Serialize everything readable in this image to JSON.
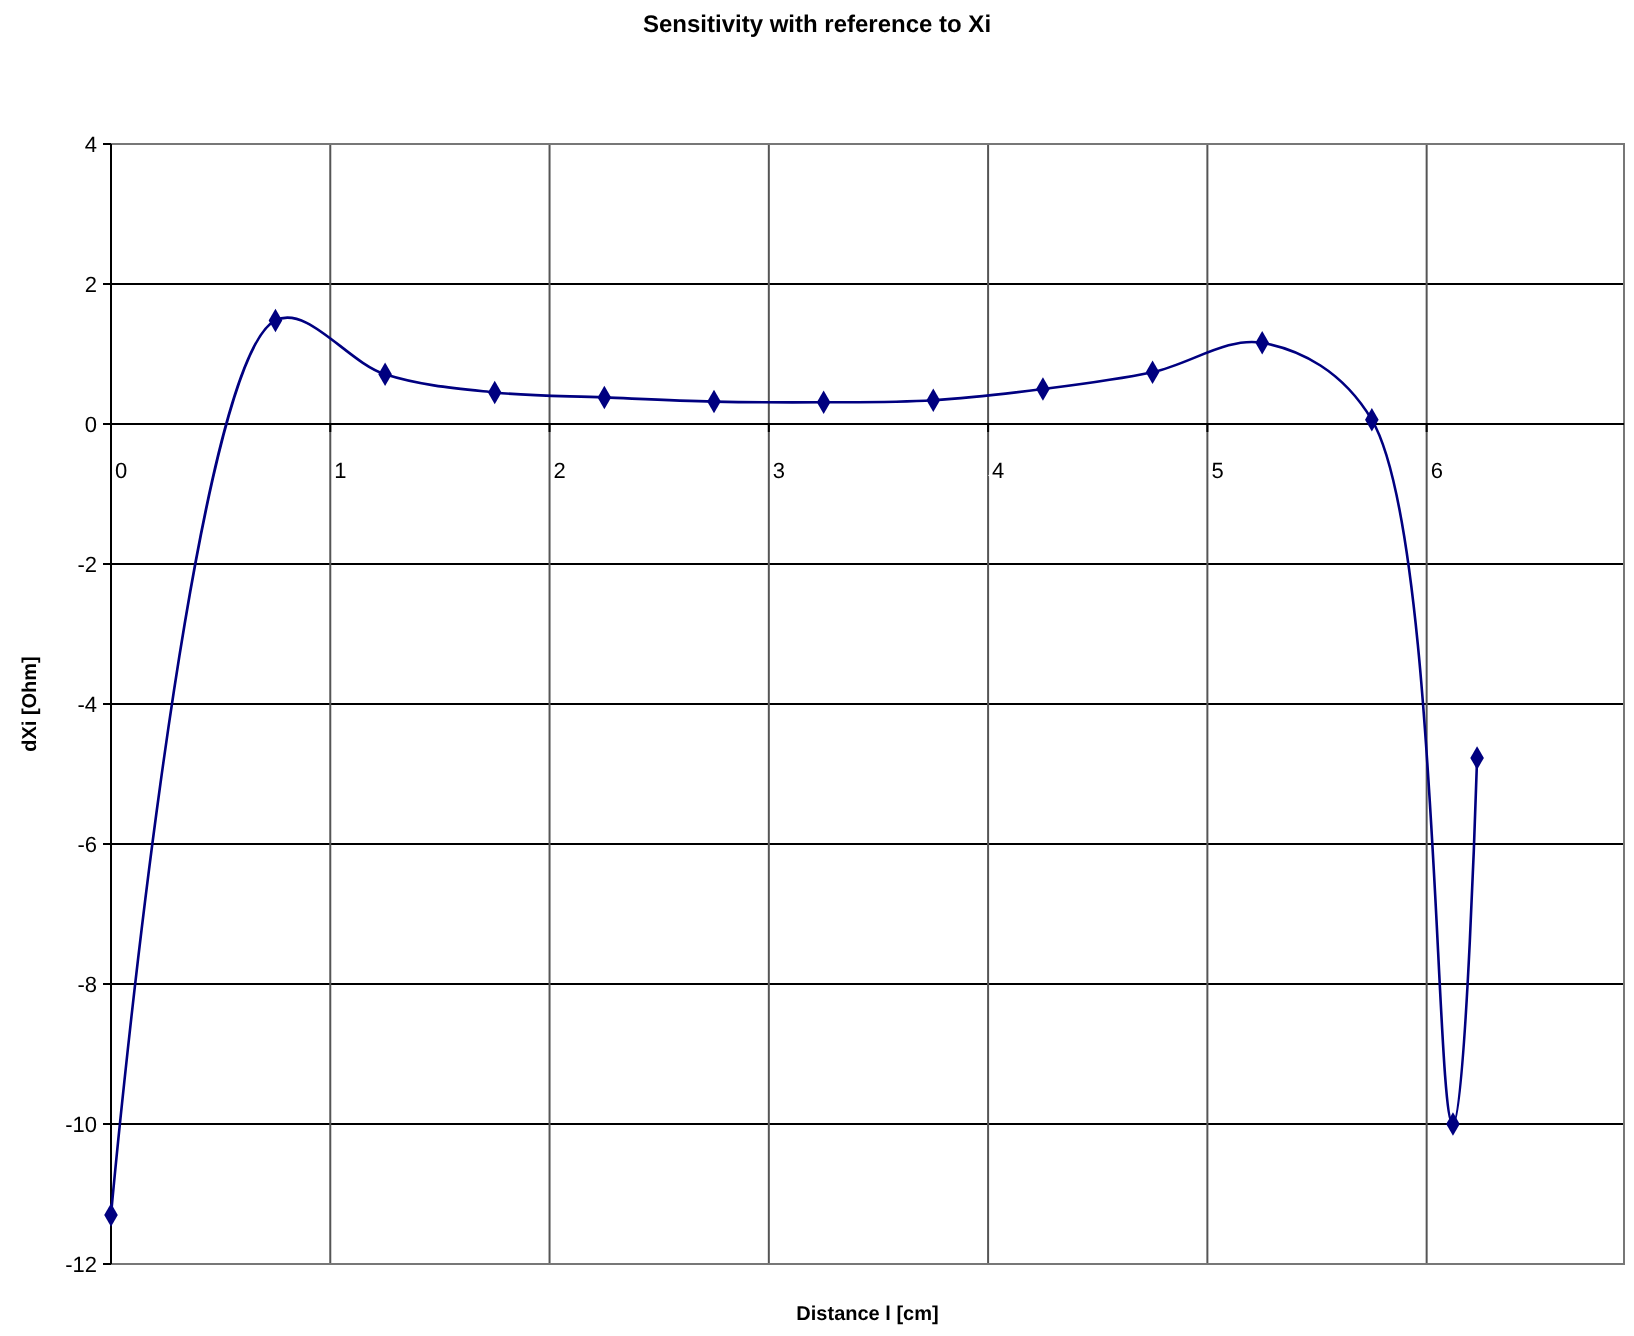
{
  "chart_data": {
    "type": "line",
    "title": "Sensitivity with reference to Xi",
    "xlabel": "Distance l  [cm]",
    "ylabel": "dXi  [Ohm]",
    "series": [
      {
        "color": "#000080",
        "x": [
          0,
          0.75,
          1.25,
          1.75,
          2.25,
          2.75,
          3.25,
          3.75,
          4.25,
          4.75,
          5.25,
          5.75,
          6.12,
          6.23
        ],
        "values": [
          -11.3,
          1.48,
          0.71,
          0.45,
          0.38,
          0.32,
          0.31,
          0.34,
          0.5,
          0.74,
          1.16,
          0.06,
          -10,
          -4.77
        ]
      }
    ],
    "xlim": [
      0,
      6.9
    ],
    "xticks": [
      0,
      1,
      2,
      3,
      4,
      5,
      6
    ],
    "ylim": [
      -12,
      4
    ],
    "yticks": [
      -12,
      -10,
      -8,
      -6,
      -4,
      -2,
      0,
      2,
      4
    ],
    "grid": true,
    "marker": "diamond",
    "line_style": "solid"
  }
}
